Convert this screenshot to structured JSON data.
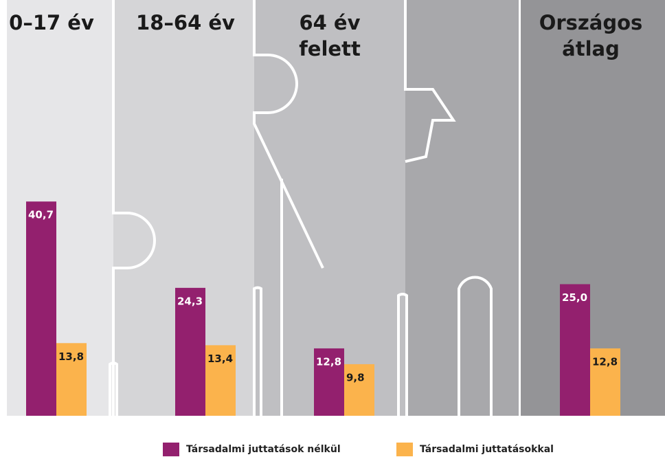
{
  "chart_data": {
    "type": "bar",
    "categories": [
      "0–17 év",
      "18–64 év",
      "64 év felett",
      "Országos átlag"
    ],
    "series": [
      {
        "name": "Társadalmi juttatások nélkül",
        "color": "#93206e",
        "values": [
          40.7,
          24.3,
          12.8,
          25.0
        ],
        "value_labels": [
          "40,7",
          "24,3",
          "12,8",
          "25,0"
        ]
      },
      {
        "name": "Társadalmi juttatásokkal",
        "color": "#fbb34c",
        "values": [
          13.8,
          13.4,
          9.8,
          12.8
        ],
        "value_labels": [
          "13,8",
          "13,4",
          "9,8",
          "12,8"
        ]
      }
    ]
  }
}
